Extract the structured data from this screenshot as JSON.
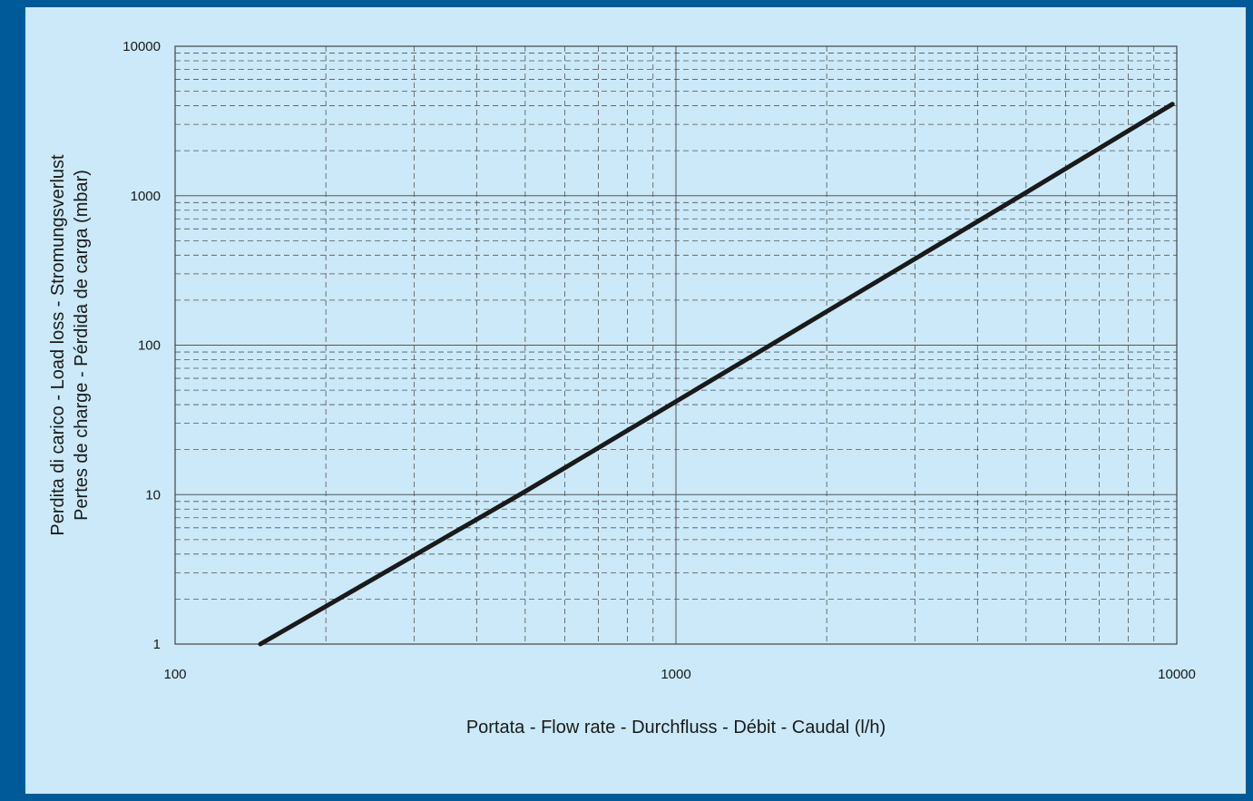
{
  "chart_data": {
    "type": "line",
    "title": "",
    "xlabel": "Portata - Flow rate - Durchfluss - Débit - Caudal (l/h)",
    "ylabel_lines": [
      "Perdita di carico - Load loss - Stromungsverlust",
      "Pertes de charge - Pérdida de carga (mbar)"
    ],
    "x_scale": "log",
    "y_scale": "log",
    "xlim": [
      100,
      10000
    ],
    "ylim": [
      1,
      10000
    ],
    "x_ticks": [
      "100",
      "1000",
      "10000"
    ],
    "y_ticks": [
      "1",
      "10",
      "100",
      "1000",
      "10000"
    ],
    "grid": "major solid, minor dashed",
    "legend": "none",
    "series": [
      {
        "values": [
          {
            "x": 148,
            "y": 1
          },
          {
            "x": 500,
            "y": 10.5
          },
          {
            "x": 1000,
            "y": 42
          },
          {
            "x": 5000,
            "y": 1050
          },
          {
            "x": 9800,
            "y": 4100
          }
        ]
      }
    ],
    "colors": {
      "frame": "#005a9a",
      "background": "#cbe9f8",
      "line": "#1a1a1a",
      "grid": "#555555"
    }
  }
}
